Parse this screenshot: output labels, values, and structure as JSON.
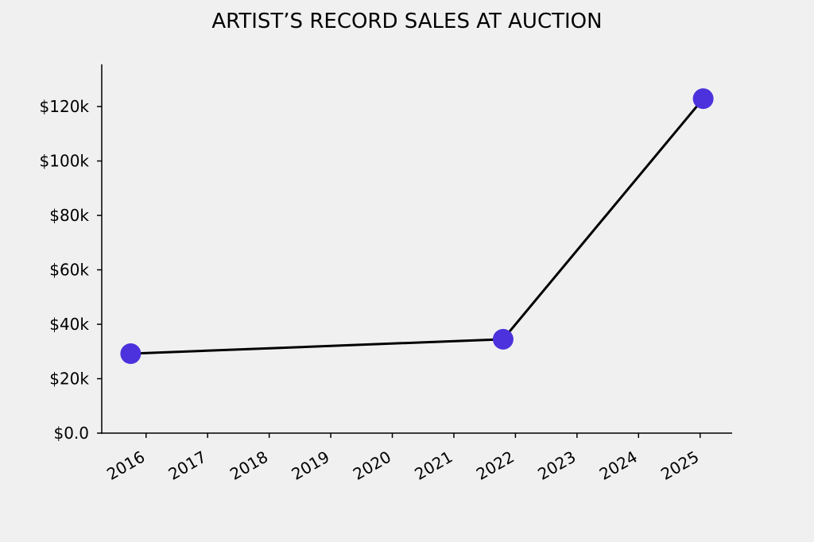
{
  "chart_data": {
    "type": "line",
    "title": "ARTIST’S RECORD SALES AT AUCTION",
    "x": [
      2015.75,
      2021.8,
      2025.05
    ],
    "series": [
      {
        "values": [
          29200,
          34500,
          122900
        ],
        "color": "#000000",
        "marker_color": "#4b32dc"
      }
    ],
    "xlim": [
      2015.28,
      2025.52
    ],
    "xticks": [
      2016,
      2017,
      2018,
      2019,
      2020,
      2021,
      2022,
      2023,
      2024,
      2025
    ],
    "ylim": [
      0,
      135500
    ],
    "yticks": [
      {
        "value": 0,
        "label": "$0.0"
      },
      {
        "value": 20000,
        "label": "$20k"
      },
      {
        "value": 40000,
        "label": "$40k"
      },
      {
        "value": 60000,
        "label": "$60k"
      },
      {
        "value": 80000,
        "label": "$80k"
      },
      {
        "value": 100000,
        "label": "$100k"
      },
      {
        "value": 120000,
        "label": "$120k"
      }
    ],
    "grid": false
  }
}
